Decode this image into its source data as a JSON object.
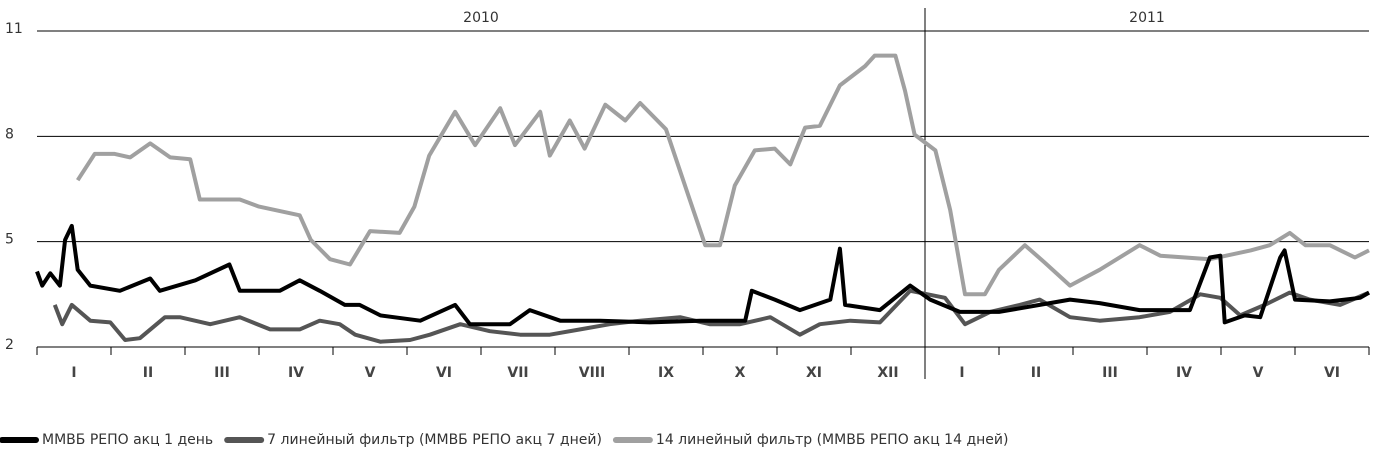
{
  "chart_data": {
    "type": "line",
    "periods": [
      {
        "label": "2010",
        "start": 0,
        "end": 12
      },
      {
        "label": "2011",
        "start": 12,
        "end": 18
      }
    ],
    "xlim": [
      0,
      18
    ],
    "xticks": [
      {
        "value": 0.5,
        "label": "I"
      },
      {
        "value": 1.5,
        "label": "II"
      },
      {
        "value": 2.5,
        "label": "III"
      },
      {
        "value": 3.5,
        "label": "IV"
      },
      {
        "value": 4.5,
        "label": "V"
      },
      {
        "value": 5.5,
        "label": "VI"
      },
      {
        "value": 6.5,
        "label": "VII"
      },
      {
        "value": 7.5,
        "label": "VIII"
      },
      {
        "value": 8.5,
        "label": "IX"
      },
      {
        "value": 9.5,
        "label": "X"
      },
      {
        "value": 10.5,
        "label": "XI"
      },
      {
        "value": 11.5,
        "label": "XII"
      },
      {
        "value": 12.5,
        "label": "I"
      },
      {
        "value": 13.5,
        "label": "II"
      },
      {
        "value": 14.5,
        "label": "III"
      },
      {
        "value": 15.5,
        "label": "IV"
      },
      {
        "value": 16.5,
        "label": "V"
      },
      {
        "value": 17.5,
        "label": "VI"
      }
    ],
    "xtick_marks": [
      0,
      1,
      2,
      3,
      4,
      5,
      6,
      7,
      8,
      9,
      10,
      11,
      12,
      13,
      14,
      15,
      16,
      17,
      18
    ],
    "ylim": [
      2,
      11
    ],
    "yticks": [
      2,
      5,
      8,
      11
    ],
    "grid": true,
    "series": [
      {
        "name": "ММВБ РЕПО акц 1 день",
        "color": "#000000",
        "x": [
          0,
          0.07,
          0.18,
          0.31,
          0.38,
          0.47,
          0.55,
          0.72,
          1.12,
          1.53,
          1.66,
          2.14,
          2.6,
          2.74,
          3.28,
          3.55,
          3.82,
          4.16,
          4.36,
          4.64,
          5.18,
          5.65,
          5.85,
          6.39,
          6.66,
          7.07,
          7.61,
          8.28,
          8.96,
          9.57,
          9.66,
          9.97,
          10.31,
          10.72,
          10.85,
          10.92,
          11.39,
          11.8,
          12.07,
          12.47,
          13.0,
          13.55,
          13.96,
          14.36,
          14.9,
          15.58,
          15.85,
          15.99,
          16.05,
          16.32,
          16.53,
          16.8,
          16.86,
          17.0,
          17.47,
          17.88,
          18.0
        ],
        "values": [
          4.15,
          3.75,
          4.1,
          3.75,
          5.05,
          5.45,
          4.2,
          3.75,
          3.6,
          3.95,
          3.6,
          3.9,
          4.35,
          3.6,
          3.6,
          3.9,
          3.6,
          3.2,
          3.2,
          2.9,
          2.75,
          3.2,
          2.65,
          2.65,
          3.05,
          2.75,
          2.75,
          2.7,
          2.75,
          2.75,
          3.6,
          3.35,
          3.05,
          3.35,
          4.8,
          3.2,
          3.05,
          3.75,
          3.35,
          3.0,
          3.0,
          3.2,
          3.35,
          3.25,
          3.05,
          3.05,
          4.55,
          4.6,
          2.7,
          2.9,
          2.85,
          4.55,
          4.75,
          3.35,
          3.3,
          3.4,
          3.55
        ]
      },
      {
        "name": "7 линейный фильтр (ММВБ РЕПО акц 7 дней)",
        "color": "#555555",
        "x": [
          0.24,
          0.34,
          0.47,
          0.72,
          0.99,
          1.19,
          1.39,
          1.73,
          1.93,
          2.34,
          2.74,
          3.15,
          3.55,
          3.82,
          4.09,
          4.3,
          4.64,
          5.04,
          5.31,
          5.72,
          6.12,
          6.53,
          6.93,
          7.34,
          7.74,
          8.15,
          8.69,
          9.09,
          9.5,
          9.91,
          10.31,
          10.58,
          10.99,
          11.39,
          11.8,
          12.27,
          12.54,
          12.88,
          13.28,
          13.55,
          13.96,
          14.36,
          14.9,
          15.31,
          15.72,
          15.99,
          16.26,
          16.59,
          16.93,
          17.2,
          17.61,
          18.0
        ],
        "values": [
          3.2,
          2.65,
          3.2,
          2.75,
          2.7,
          2.2,
          2.25,
          2.85,
          2.85,
          2.65,
          2.85,
          2.5,
          2.5,
          2.75,
          2.65,
          2.35,
          2.15,
          2.2,
          2.35,
          2.65,
          2.45,
          2.35,
          2.35,
          2.5,
          2.65,
          2.75,
          2.85,
          2.65,
          2.65,
          2.85,
          2.35,
          2.65,
          2.75,
          2.7,
          3.6,
          3.4,
          2.65,
          3.0,
          3.2,
          3.35,
          2.85,
          2.75,
          2.85,
          3.0,
          3.5,
          3.4,
          2.9,
          3.2,
          3.55,
          3.35,
          3.2,
          3.55
        ]
      },
      {
        "name": "14 линейный фильтр (ММВБ РЕПО акц 14 дней)",
        "color": "#a0a0a0",
        "x": [
          0.55,
          0.78,
          1.05,
          1.26,
          1.53,
          1.8,
          2.07,
          2.2,
          2.74,
          3.0,
          3.55,
          3.7,
          3.96,
          4.23,
          4.5,
          4.9,
          5.1,
          5.3,
          5.65,
          5.92,
          6.26,
          6.46,
          6.8,
          6.93,
          7.2,
          7.4,
          7.68,
          7.95,
          8.15,
          8.5,
          8.82,
          9.03,
          9.23,
          9.43,
          9.7,
          9.97,
          10.18,
          10.38,
          10.58,
          10.85,
          11.19,
          11.32,
          11.6,
          11.73,
          11.86,
          12.14,
          12.34,
          12.54,
          12.81,
          13.0,
          13.35,
          13.62,
          13.96,
          14.36,
          14.9,
          15.18,
          15.85,
          16.4,
          16.66,
          16.93,
          17.14,
          17.47,
          17.81,
          18.0
        ],
        "values": [
          6.75,
          7.5,
          7.5,
          7.4,
          7.8,
          7.4,
          7.35,
          6.2,
          6.2,
          6.0,
          5.75,
          5.05,
          4.5,
          4.35,
          5.3,
          5.25,
          6.0,
          7.45,
          8.7,
          7.75,
          8.8,
          7.75,
          8.7,
          7.45,
          8.45,
          7.65,
          8.9,
          8.45,
          8.95,
          8.2,
          6.2,
          4.9,
          4.9,
          6.6,
          7.6,
          7.65,
          7.2,
          8.25,
          8.3,
          9.45,
          10.0,
          10.3,
          10.3,
          9.3,
          8.05,
          7.6,
          5.9,
          3.5,
          3.5,
          4.2,
          4.9,
          4.4,
          3.75,
          4.2,
          4.9,
          4.6,
          4.5,
          4.75,
          4.9,
          5.25,
          4.9,
          4.9,
          4.55,
          4.75
        ]
      }
    ]
  }
}
